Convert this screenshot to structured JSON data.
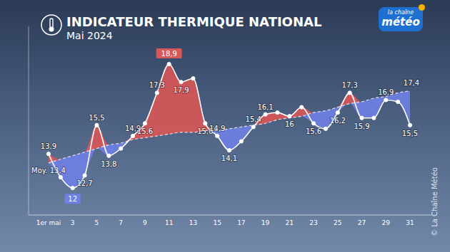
{
  "chart_data": {
    "type": "line",
    "title": "INDICATEUR THERMIQUE NATIONAL",
    "subtitle": "Mai 2024",
    "categories": [
      "1er mai",
      null,
      "3",
      null,
      "5",
      null,
      "7",
      null,
      "9",
      null,
      "11",
      null,
      "13",
      null,
      "15",
      null,
      "17",
      null,
      "19",
      null,
      "21",
      null,
      "23",
      null,
      "25",
      null,
      "27",
      null,
      "29",
      null,
      "31"
    ],
    "series": [
      {
        "type": "line",
        "color": "#ffffff",
        "marker": "circle",
        "values": [
          13.9,
          12.6,
          12,
          12.7,
          15.5,
          13.8,
          14.2,
          14.9,
          15.6,
          17.3,
          18.9,
          17.9,
          18.1,
          15.6,
          14.9,
          14.1,
          14.6,
          15.4,
          16.1,
          16.2,
          16,
          16.5,
          15.6,
          15.3,
          16.2,
          17.3,
          15.9,
          15.9,
          16.9,
          16.8,
          15.5
        ],
        "value_labels": [
          "13,9",
          null,
          "12",
          "12,7",
          "15,5",
          "13,8",
          null,
          "14,9",
          "15,6",
          "17,3",
          "18,9",
          "17,9",
          null,
          "15,6",
          "14,9",
          "14,1",
          null,
          "15,4",
          "16,1",
          null,
          "16",
          null,
          "15,6",
          null,
          "16,2",
          "17,3",
          "15,9",
          null,
          "16,9",
          null,
          "15,5"
        ]
      },
      {
        "type": "line",
        "color": "#ffffff",
        "line_style": "dashed",
        "values": [
          13.4,
          13.6,
          13.8,
          14.0,
          14.2,
          14.4,
          14.5,
          14.7,
          14.8,
          14.9,
          15.0,
          15.1,
          15.1,
          15.2,
          15.2,
          15.3,
          15.4,
          15.5,
          15.6,
          15.8,
          15.9,
          16.0,
          16.2,
          16.3,
          16.5,
          16.7,
          16.8,
          17.0,
          17.1,
          17.3,
          17.4
        ],
        "value_labels": [
          "Moy. 13,4",
          null,
          null,
          null,
          null,
          null,
          null,
          null,
          null,
          null,
          null,
          null,
          null,
          null,
          null,
          null,
          null,
          null,
          null,
          null,
          null,
          null,
          null,
          null,
          null,
          null,
          null,
          null,
          null,
          null,
          "17,4"
        ]
      }
    ],
    "ylim": [
      10.5,
      21
    ],
    "yticks": [],
    "tick_labels": "x",
    "data_labels": true,
    "grid": false,
    "annotations": [
      "la chaîne",
      "météo",
      "© La Chaîne Météo"
    ]
  }
}
